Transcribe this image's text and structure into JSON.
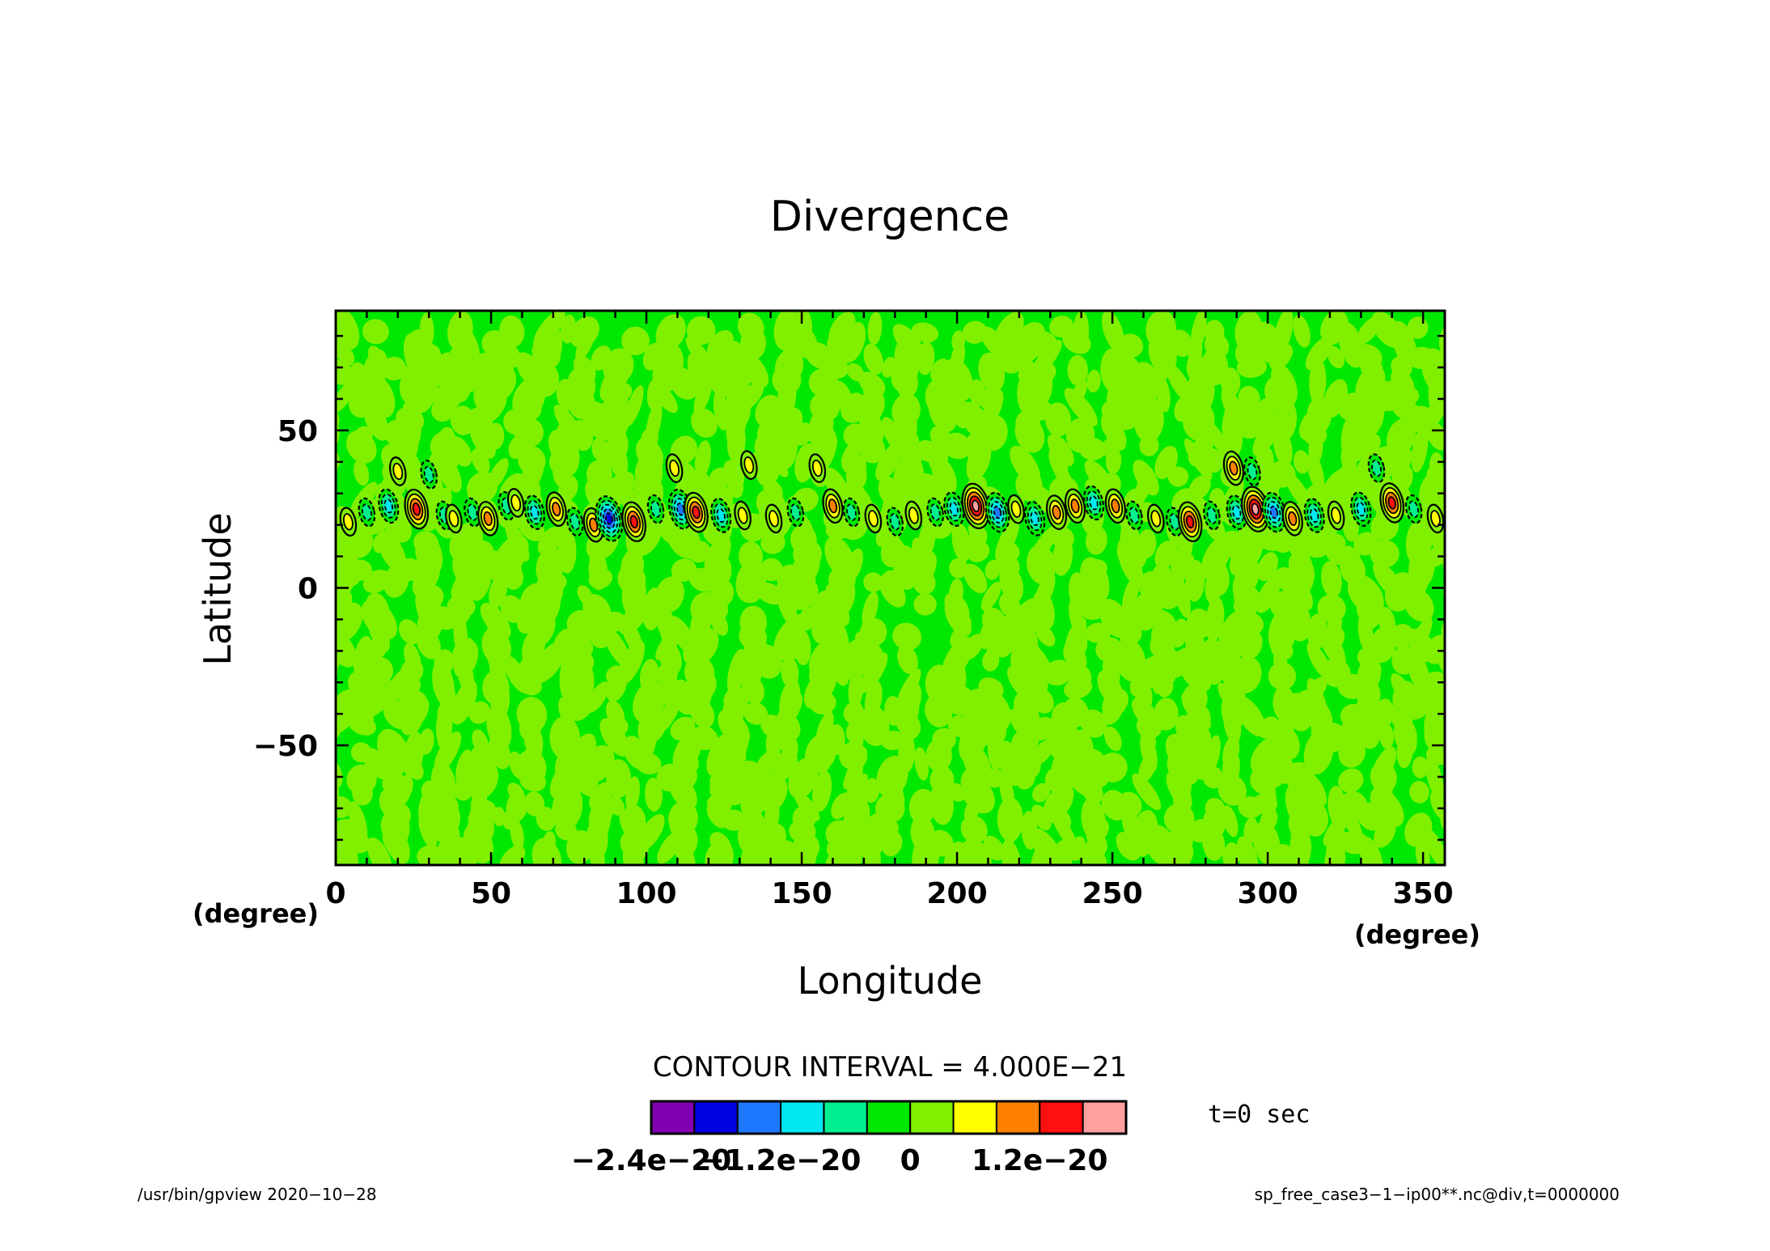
{
  "chart_data": {
    "type": "heatmap",
    "title": "Divergence",
    "xlabel": "Longitude",
    "ylabel": "Latitude",
    "x_unit": "(degree)",
    "y_unit": "(degree)",
    "xlim": [
      0,
      357
    ],
    "ylim": [
      -88,
      88
    ],
    "x_ticks": [
      0,
      50,
      100,
      150,
      200,
      250,
      300,
      350
    ],
    "x_tick_labels": [
      "0",
      "50",
      "100",
      "150",
      "200",
      "250",
      "300",
      "350"
    ],
    "y_ticks": [
      50,
      0,
      -50
    ],
    "y_tick_labels": [
      "50",
      "0",
      "−50"
    ],
    "contour_interval_text": "CONTOUR INTERVAL = 4.000E−21",
    "time_text": "t=0 sec",
    "colorbar": {
      "colors": [
        "#8000b0",
        "#0000e0",
        "#1e78ff",
        "#00e8f0",
        "#00f090",
        "#00e800",
        "#80f000",
        "#ffff00",
        "#ff8000",
        "#ff1010",
        "#ffa0a0"
      ],
      "bounds": [
        -2.4e-20,
        -2e-20,
        -1.6e-20,
        -1.2e-20,
        -8e-21,
        -4e-21,
        0,
        4e-21,
        8e-21,
        1.2e-20,
        1.6e-20,
        2e-20
      ],
      "tick_labels": [
        "−2.4e−20",
        "−1.2e−20",
        "0",
        "1.2e−20"
      ],
      "tick_values": [
        -2.4e-20,
        -1.2e-20,
        0,
        1.2e-20
      ]
    },
    "background_colors": {
      "positive_small": "#80f000",
      "negative_small": "#00e800"
    },
    "band": {
      "lat_center": 24,
      "cells": [
        {
          "lon": 4,
          "lat": 21,
          "v": 6e-21
        },
        {
          "lon": 10,
          "lat": 24,
          "v": -5e-21
        },
        {
          "lon": 17,
          "lat": 26,
          "v": -9e-21
        },
        {
          "lon": 20,
          "lat": 37,
          "v": 5e-21
        },
        {
          "lon": 26,
          "lat": 25,
          "v": 1.3e-20
        },
        {
          "lon": 30,
          "lat": 36,
          "v": -4.5e-21
        },
        {
          "lon": 35,
          "lat": 23,
          "v": -7e-21
        },
        {
          "lon": 38,
          "lat": 22,
          "v": 6e-21
        },
        {
          "lon": 44,
          "lat": 24,
          "v": -6e-21
        },
        {
          "lon": 49,
          "lat": 22,
          "v": 1.1e-20
        },
        {
          "lon": 55,
          "lat": 26,
          "v": -6e-21
        },
        {
          "lon": 58,
          "lat": 27,
          "v": 5e-21
        },
        {
          "lon": 64,
          "lat": 24,
          "v": -9e-21
        },
        {
          "lon": 71,
          "lat": 25,
          "v": 9e-21
        },
        {
          "lon": 77,
          "lat": 21,
          "v": -5e-21
        },
        {
          "lon": 83,
          "lat": 20,
          "v": 1e-20
        },
        {
          "lon": 88,
          "lat": 22,
          "v": -1.7e-20
        },
        {
          "lon": 96,
          "lat": 21,
          "v": 1.4e-20
        },
        {
          "lon": 103,
          "lat": 25,
          "v": -5e-21
        },
        {
          "lon": 109,
          "lat": 38,
          "v": 5e-21
        },
        {
          "lon": 111,
          "lat": 25,
          "v": -1.2e-20
        },
        {
          "lon": 116,
          "lat": 24,
          "v": 1.5e-20
        },
        {
          "lon": 124,
          "lat": 23,
          "v": -8e-21
        },
        {
          "lon": 131,
          "lat": 23,
          "v": 6e-21
        },
        {
          "lon": 133,
          "lat": 39,
          "v": 5e-21
        },
        {
          "lon": 141,
          "lat": 22,
          "v": 7e-21
        },
        {
          "lon": 148,
          "lat": 24,
          "v": -7e-21
        },
        {
          "lon": 155,
          "lat": 38,
          "v": 5e-21
        },
        {
          "lon": 160,
          "lat": 26,
          "v": 1.1e-20
        },
        {
          "lon": 166,
          "lat": 24,
          "v": -6e-21
        },
        {
          "lon": 173,
          "lat": 22,
          "v": 5e-21
        },
        {
          "lon": 180,
          "lat": 21,
          "v": -5e-21
        },
        {
          "lon": 186,
          "lat": 23,
          "v": 6e-21
        },
        {
          "lon": 193,
          "lat": 24,
          "v": -5e-21
        },
        {
          "lon": 199,
          "lat": 25,
          "v": -1e-20
        },
        {
          "lon": 206,
          "lat": 26,
          "v": 1.6e-20
        },
        {
          "lon": 213,
          "lat": 24,
          "v": -1.2e-20
        },
        {
          "lon": 219,
          "lat": 25,
          "v": 7e-21
        },
        {
          "lon": 225,
          "lat": 22,
          "v": -8e-21
        },
        {
          "lon": 232,
          "lat": 24,
          "v": 9e-21
        },
        {
          "lon": 238,
          "lat": 26,
          "v": 1.1e-20
        },
        {
          "lon": 244,
          "lat": 27,
          "v": -1e-20
        },
        {
          "lon": 251,
          "lat": 26,
          "v": 1e-20
        },
        {
          "lon": 257,
          "lat": 23,
          "v": -6e-21
        },
        {
          "lon": 264,
          "lat": 22,
          "v": 6e-21
        },
        {
          "lon": 270,
          "lat": 21,
          "v": -5e-21
        },
        {
          "lon": 275,
          "lat": 21,
          "v": 1.3e-20
        },
        {
          "lon": 282,
          "lat": 23,
          "v": -7e-21
        },
        {
          "lon": 289,
          "lat": 38,
          "v": 8e-21
        },
        {
          "lon": 290,
          "lat": 24,
          "v": -8e-21
        },
        {
          "lon": 295,
          "lat": 37,
          "v": -7e-21
        },
        {
          "lon": 296,
          "lat": 25,
          "v": 1.9e-20
        },
        {
          "lon": 302,
          "lat": 24,
          "v": -1.2e-20
        },
        {
          "lon": 308,
          "lat": 22,
          "v": 9e-21
        },
        {
          "lon": 315,
          "lat": 23,
          "v": -8e-21
        },
        {
          "lon": 322,
          "lat": 23,
          "v": 6e-21
        },
        {
          "lon": 330,
          "lat": 25,
          "v": -8e-21
        },
        {
          "lon": 335,
          "lat": 38,
          "v": -4.5e-21
        },
        {
          "lon": 340,
          "lat": 27,
          "v": 1.2e-20
        },
        {
          "lon": 347,
          "lat": 25,
          "v": -6e-21
        },
        {
          "lon": 354,
          "lat": 22,
          "v": 5e-21
        }
      ]
    }
  },
  "footer": {
    "left": "/usr/bin/gpview  2020−10−28",
    "right": "sp_free_case3−1−ip00**.nc@div,t=0000000"
  }
}
